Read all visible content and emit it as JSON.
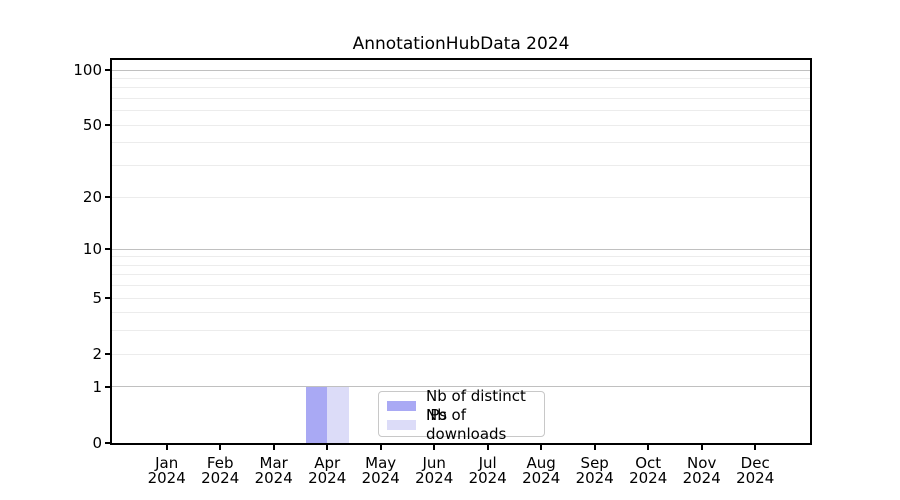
{
  "chart_data": {
    "type": "bar",
    "title": "AnnotationHubData 2024",
    "x_axis": {
      "categories": [
        "Jan",
        "Feb",
        "Mar",
        "Apr",
        "May",
        "Jun",
        "Jul",
        "Aug",
        "Sep",
        "Oct",
        "Nov",
        "Dec"
      ],
      "year_label": "2024"
    },
    "y_axis": {
      "scale": "log1p",
      "ylim": [
        0,
        113
      ],
      "tick_values": [
        0,
        1,
        2,
        5,
        10,
        20,
        50,
        100
      ],
      "major_grid_values": [
        1,
        10,
        100
      ],
      "minor_grid_values": [
        2,
        3,
        4,
        5,
        6,
        7,
        8,
        9,
        20,
        30,
        40,
        50,
        60,
        70,
        80,
        90
      ]
    },
    "series": [
      {
        "name": "Nb of distinct IPs",
        "color": "#a9a9f4",
        "values": [
          0,
          0,
          0,
          1,
          0,
          0,
          0,
          0,
          0,
          0,
          0,
          0
        ]
      },
      {
        "name": "Nb of downloads",
        "color": "#dcdcf8",
        "values": [
          0,
          0,
          0,
          1,
          0,
          0,
          0,
          0,
          0,
          0,
          0,
          0
        ]
      }
    ],
    "legend": {
      "position": "lower-center-inside",
      "entries": [
        "Nb of distinct IPs",
        "Nb of downloads"
      ]
    },
    "grid": "horizontal-only"
  },
  "colors": {
    "background": "#ffffff",
    "axis_spine": "#000000",
    "text": "#000000",
    "major_gridline": "#c0c0c0",
    "minor_gridline": "#ececec",
    "legend_border": "#c8c8c8"
  }
}
